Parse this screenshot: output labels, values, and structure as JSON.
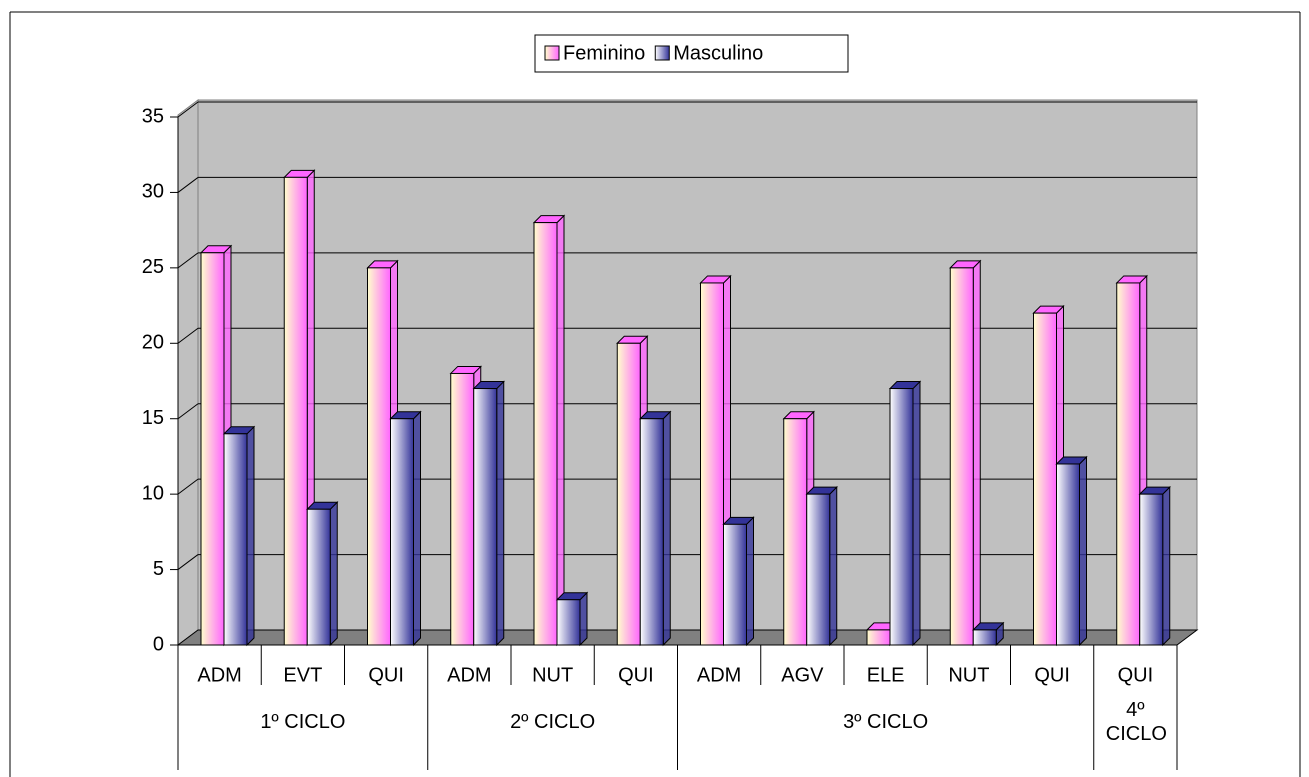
{
  "chart_data": {
    "type": "bar3d",
    "groups": [
      {
        "label": "1º CICLO",
        "categories": [
          "ADM",
          "EVT",
          "QUI"
        ]
      },
      {
        "label": "2º CICLO",
        "categories": [
          "ADM",
          "NUT",
          "QUI"
        ]
      },
      {
        "label": "3º CICLO",
        "categories": [
          "ADM",
          "AGV",
          "ELE",
          "NUT",
          "QUI"
        ]
      },
      {
        "label": "4º CICLO",
        "categories": [
          "QUI"
        ]
      }
    ],
    "series": [
      {
        "name": "Feminino",
        "color": "#ff66ff",
        "values": [
          26,
          31,
          25,
          18,
          28,
          20,
          24,
          15,
          1,
          25,
          22,
          24
        ]
      },
      {
        "name": "Masculino",
        "color": "#333399",
        "values": [
          14,
          9,
          15,
          17,
          3,
          15,
          8,
          10,
          17,
          1,
          12,
          10
        ]
      }
    ],
    "ylim": [
      0,
      35
    ],
    "yticks": [
      0,
      5,
      10,
      15,
      20,
      25,
      30,
      35
    ],
    "grid": true,
    "legend": "top"
  }
}
